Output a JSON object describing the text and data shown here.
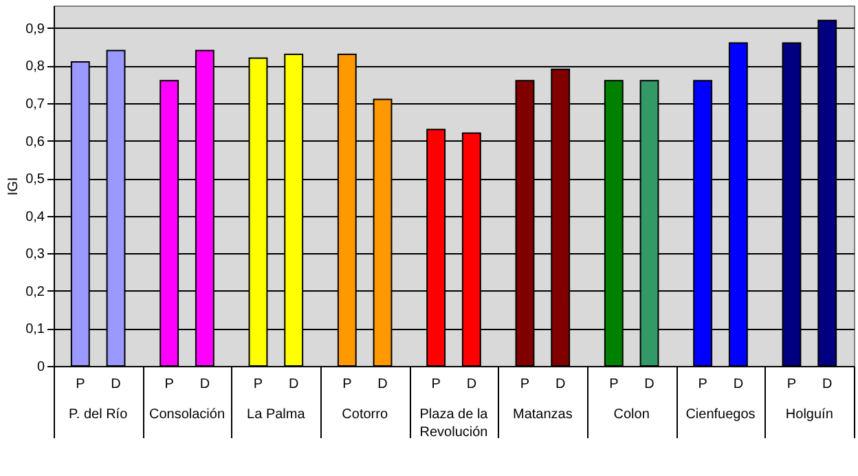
{
  "chart_data": {
    "type": "bar",
    "ylabel": "IGI",
    "categories": [
      "P. del Río",
      "Consolación",
      "La Palma",
      "Cotorro",
      "Plaza de la Revolución",
      "Matanzas",
      "Colon",
      "Cienfuegos",
      "Holguín"
    ],
    "series": [
      {
        "name": "P",
        "colors": [
          "#9999ff",
          "#ff00ff",
          "#ffff00",
          "#ff9900",
          "#ff0000",
          "#800000",
          "#008000",
          "#0000ff",
          "#000080"
        ],
        "values": [
          0.81,
          0.76,
          0.82,
          0.83,
          0.63,
          0.76,
          0.76,
          0.76,
          0.86
        ]
      },
      {
        "name": "D",
        "colors": [
          "#9999ff",
          "#ff00ff",
          "#ffff00",
          "#ff9900",
          "#ff0000",
          "#800000",
          "#339966",
          "#0000ff",
          "#000080"
        ],
        "values": [
          0.84,
          0.84,
          0.83,
          0.71,
          0.62,
          0.79,
          0.76,
          0.86,
          0.92
        ]
      }
    ],
    "ylim": [
      0,
      0.96
    ],
    "yticks": [
      0,
      {
        "value": 0.1,
        "label": "0,1"
      },
      {
        "value": 0.2,
        "label": "0,2"
      },
      {
        "value": 0.3,
        "label": "0,3"
      },
      {
        "value": 0.4,
        "label": "0,4"
      },
      {
        "value": 0.5,
        "label": "0,5"
      },
      {
        "value": 0.6,
        "label": "0,6"
      },
      {
        "value": 0.7,
        "label": "0,7"
      },
      {
        "value": 0.8,
        "label": "0,8"
      },
      {
        "value": 0.9,
        "label": "0,9"
      }
    ],
    "grid": true
  }
}
